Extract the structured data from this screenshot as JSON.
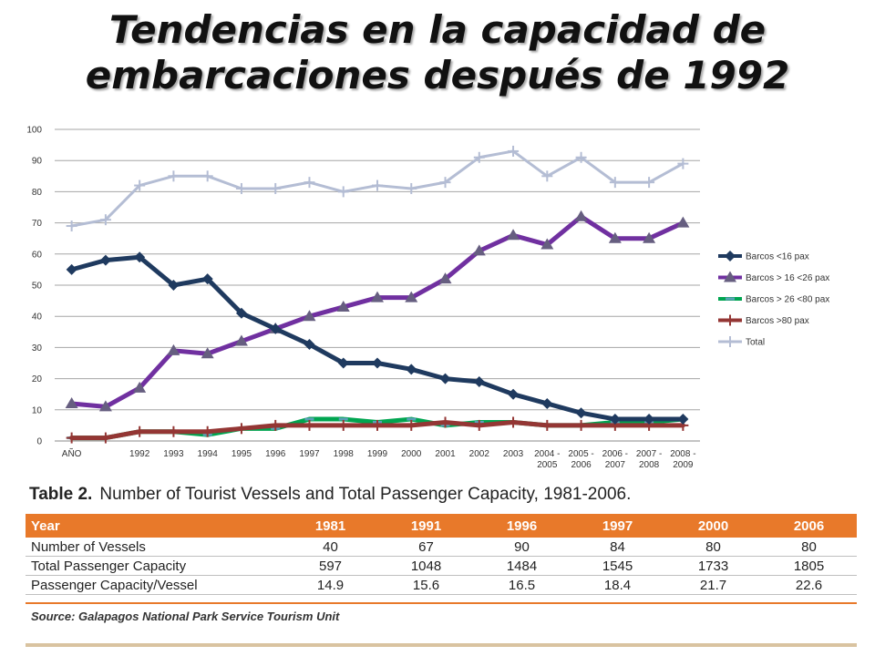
{
  "slide_title": "Tendencias en la capacidad de embarcaciones  después de 1992",
  "chart_data": {
    "type": "line",
    "title": "",
    "xlabel": "",
    "ylabel": "",
    "ylim": [
      0,
      100
    ],
    "yticks": [
      0,
      10,
      20,
      30,
      40,
      50,
      60,
      70,
      80,
      90,
      100
    ],
    "grid": true,
    "legend_position": "right",
    "categories": [
      "AÑO",
      "",
      "1992",
      "1993",
      "1994",
      "1995",
      "1996",
      "1997",
      "1998",
      "1999",
      "2000",
      "2001",
      "2002",
      "2003",
      "2004 - 2005",
      "2005 - 2006",
      "2006 - 2007",
      "2007 - 2008",
      "2008 - 2009"
    ],
    "series": [
      {
        "name": "Barcos <16 pax",
        "color": "#1f3a5f",
        "marker": "diamond",
        "values": [
          55,
          58,
          59,
          50,
          52,
          41,
          36,
          31,
          25,
          25,
          23,
          20,
          19,
          15,
          12,
          9,
          7,
          7,
          7
        ]
      },
      {
        "name": "Barcos > 16 <26 pax",
        "color": "#7030a0",
        "marker": "triangle",
        "values": [
          12,
          11,
          17,
          29,
          28,
          32,
          36,
          40,
          43,
          46,
          46,
          52,
          61,
          66,
          63,
          72,
          65,
          65,
          70
        ]
      },
      {
        "name": "Barcos > 26  <80 pax",
        "color": "#00a550",
        "marker": "dash",
        "values": [
          1,
          1,
          3,
          3,
          2,
          4,
          4,
          7,
          7,
          6,
          7,
          5,
          6,
          6,
          5,
          5,
          6,
          6,
          7
        ]
      },
      {
        "name": "Barcos >80 pax",
        "color": "#943634",
        "marker": "plus",
        "values": [
          1,
          1,
          3,
          3,
          3,
          4,
          5,
          5,
          5,
          5,
          5,
          6,
          5,
          6,
          5,
          5,
          5,
          5,
          5
        ]
      },
      {
        "name": "Total",
        "color": "#b4bdd4",
        "marker": "plus",
        "values": [
          69,
          71,
          82,
          85,
          85,
          81,
          81,
          83,
          80,
          82,
          81,
          83,
          91,
          93,
          85,
          91,
          83,
          83,
          89
        ]
      }
    ]
  },
  "table": {
    "caption_label": "Table 2.",
    "caption_text": "Number of Tourist Vessels and Total Passenger Capacity, 1981-2006.",
    "header": [
      "Year",
      "1981",
      "1991",
      "1996",
      "1997",
      "2000",
      "2006"
    ],
    "rows": [
      [
        "Number of Vessels",
        "40",
        "67",
        "90",
        "84",
        "80",
        "80"
      ],
      [
        "Total Passenger Capacity",
        "597",
        "1048",
        "1484",
        "1545",
        "1733",
        "1805"
      ],
      [
        "Passenger Capacity/Vessel",
        "14.9",
        "15.6",
        "16.5",
        "18.4",
        "21.7",
        "22.6"
      ]
    ],
    "source": "Source: Galapagos National Park Service Tourism Unit",
    "accent_color": "#e8792a"
  }
}
